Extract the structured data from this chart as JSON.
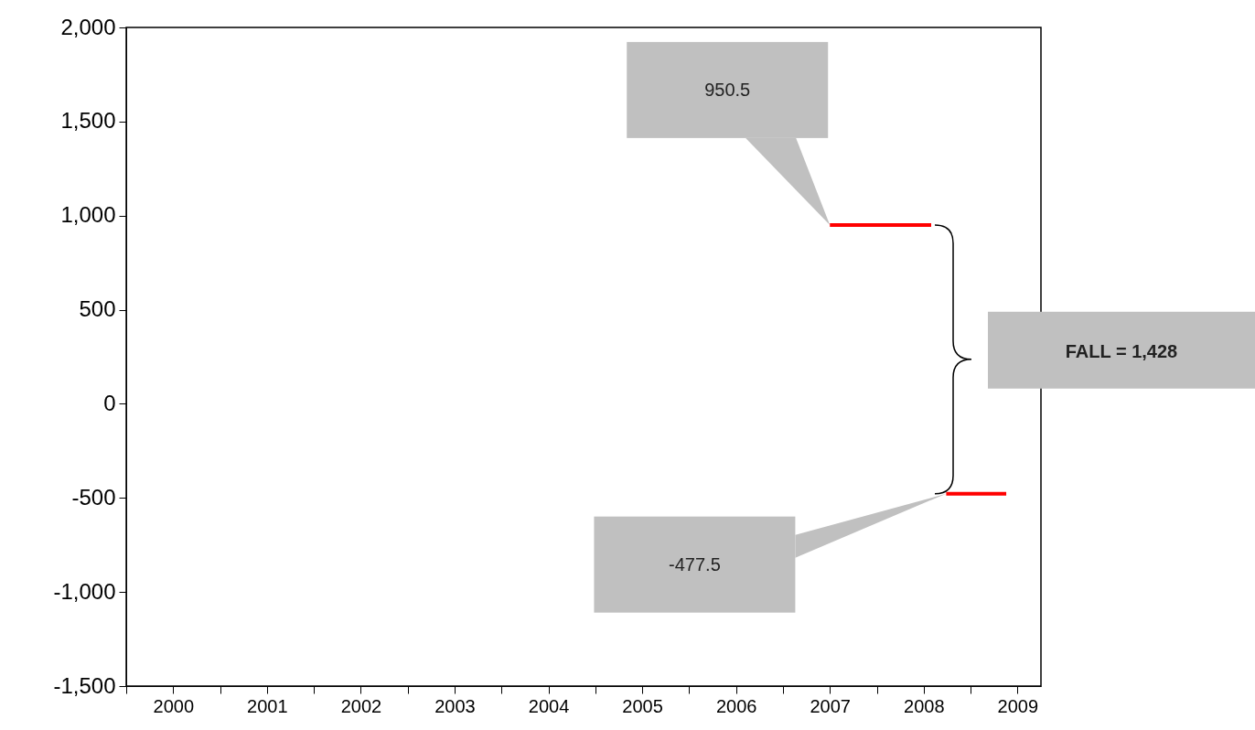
{
  "chart_data": {
    "type": "line",
    "x": [
      2007.5,
      2008.58,
      2008.66,
      2008.74,
      2009.38
    ],
    "series": [
      {
        "color": "#ff0000",
        "values": [
          950.5,
          950.5,
          null,
          -477.5,
          -477.5
        ]
      }
    ],
    "xlim": [
      2000,
      2009.75
    ],
    "xticks": [
      {
        "value": 2000,
        "label": null
      },
      {
        "value": 2000.5,
        "label": "2000"
      },
      {
        "value": 2001,
        "label": null
      },
      {
        "value": 2001.5,
        "label": "2001"
      },
      {
        "value": 2002,
        "label": null
      },
      {
        "value": 2002.5,
        "label": "2002"
      },
      {
        "value": 2003,
        "label": null
      },
      {
        "value": 2003.5,
        "label": "2003"
      },
      {
        "value": 2004,
        "label": null
      },
      {
        "value": 2004.5,
        "label": "2004"
      },
      {
        "value": 2005,
        "label": null
      },
      {
        "value": 2005.5,
        "label": "2005"
      },
      {
        "value": 2006,
        "label": null
      },
      {
        "value": 2006.5,
        "label": "2006"
      },
      {
        "value": 2007,
        "label": null
      },
      {
        "value": 2007.5,
        "label": "2007"
      },
      {
        "value": 2008,
        "label": null
      },
      {
        "value": 2008.5,
        "label": "2008"
      },
      {
        "value": 2009,
        "label": null
      },
      {
        "value": 2009.5,
        "label": "2009"
      }
    ],
    "ylim": [
      -1500,
      2000
    ],
    "yticks": [
      {
        "value": -1500,
        "label": "-1,500"
      },
      {
        "value": -1000,
        "label": "-1,000"
      },
      {
        "value": -500,
        "label": "-500"
      },
      0,
      {
        "value": 500,
        "label": "500"
      },
      {
        "value": 1000,
        "label": "1,000"
      },
      {
        "value": 1500,
        "label": "1,500"
      },
      {
        "value": 2000,
        "label": "2,000"
      }
    ],
    "grid": false,
    "annotations": [
      "950.5",
      "-477.5",
      "FALL = 1,428"
    ]
  }
}
